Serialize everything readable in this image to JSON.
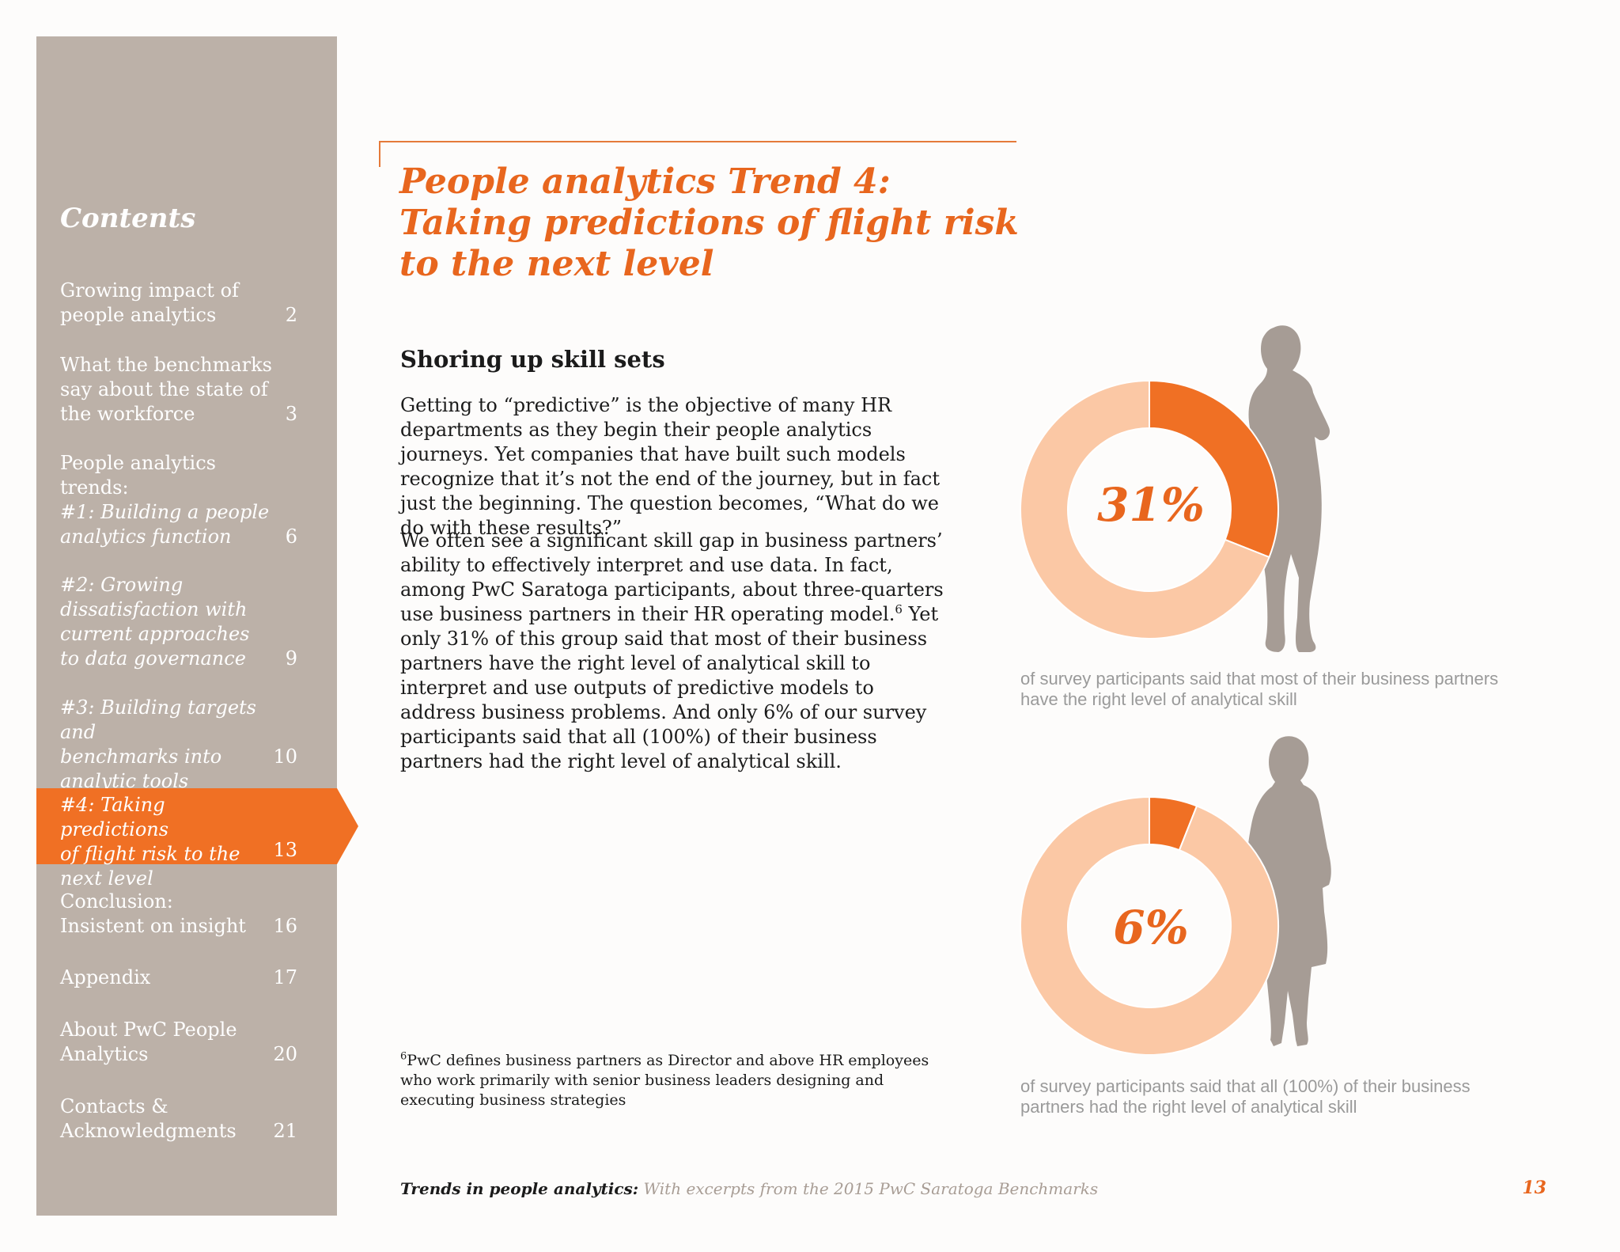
{
  "sidebar": {
    "title": "Contents",
    "items": [
      {
        "label": "Growing impact of\npeople analytics",
        "page": "2"
      },
      {
        "label": "What the benchmarks\nsay about the state of\nthe workforce",
        "page": "3"
      },
      {
        "label": "People analytics trends:",
        "page": ""
      },
      {
        "label": "#1: Building a people\nanalytics function",
        "page": "6"
      },
      {
        "label": "#2: Growing\ndissatisfaction with\ncurrent approaches\nto data governance",
        "page": "9"
      },
      {
        "label": "#3: Building targets and\nbenchmarks into\nanalytic tools",
        "page": "10"
      },
      {
        "label": "#4: Taking predictions\nof flight risk to the\nnext level",
        "page": "13"
      },
      {
        "label": "Conclusion:\nInsistent on insight",
        "page": "16"
      },
      {
        "label": "Appendix",
        "page": "17"
      },
      {
        "label": "About PwC People\nAnalytics",
        "page": "20"
      },
      {
        "label": "Contacts &\nAcknowledgments",
        "page": "21"
      }
    ]
  },
  "main": {
    "title": "People analytics Trend 4:\nTaking predictions of flight risk\nto the next level",
    "subhead": "Shoring up skill sets",
    "para1": "Getting to “predictive” is the objective of many HR departments as they begin their people analytics journeys. Yet companies that have built such models recognize that it’s not the end of the journey, but in fact just the beginning. The question becomes, “What do we do with these results?”",
    "para2_a": "We often see a significant skill gap in business partners’ ability to effectively interpret and use data. In fact, among PwC Saratoga participants, about three-quarters use business partners in their HR operating model.",
    "para2_sup": "6",
    "para2_b": " Yet only 31% of this group said that most of their business partners have the right level of analytical skill to interpret and use outputs of predictive models to address business problems. And only 6% of our survey participants said that all (100%) of their business partners had the right level of analytical skill.",
    "footnote_sup": "6",
    "footnote": "PwC defines business partners as Director and above HR employees who work primarily with senior business leaders designing and executing business strategies"
  },
  "infographic": {
    "chart1": {
      "label": "31%",
      "value": 31,
      "caption": "of survey participants said that most of their business partners have the right level of analytical skill"
    },
    "chart2": {
      "label": "6%",
      "value": 6,
      "caption": "of survey participants said that all (100%) of their business partners had the right level of analytical skill"
    },
    "colors": {
      "accent": "#f07024",
      "light": "#fbc8a5",
      "silhouette": "#a69c95"
    }
  },
  "chart_data": [
    {
      "type": "pie",
      "categories": [
        "",
        ""
      ],
      "values": [
        31,
        69
      ]
    },
    {
      "type": "pie",
      "categories": [
        "",
        ""
      ],
      "values": [
        6,
        94
      ]
    }
  ],
  "footer": {
    "bold": "Trends in people analytics:",
    "rest": " With excerpts from the 2015 PwC Saratoga Benchmarks",
    "page": "13"
  }
}
